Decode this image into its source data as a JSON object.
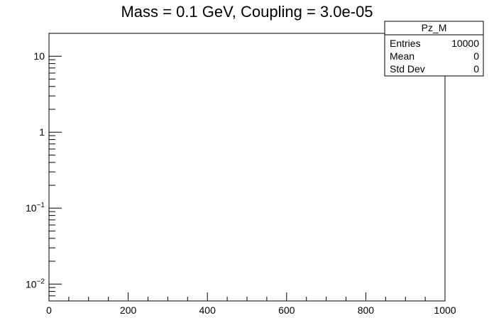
{
  "chart_data": {
    "type": "histogram",
    "title": "Mass = 0.1 GeV, Coupling = 3.0e-05",
    "xlabel": "",
    "ylabel": "",
    "xlim": [
      0,
      1000
    ],
    "ylim": [
      0.006,
      20
    ],
    "y_scale": "log",
    "grid": false,
    "x_ticks": [
      {
        "value": 0,
        "label": "0"
      },
      {
        "value": 200,
        "label": "200"
      },
      {
        "value": 400,
        "label": "400"
      },
      {
        "value": 600,
        "label": "600"
      },
      {
        "value": 800,
        "label": "800"
      },
      {
        "value": 1000,
        "label": "1000"
      }
    ],
    "y_ticks": [
      {
        "value": 0.01,
        "base": "10",
        "exp": "−2"
      },
      {
        "value": 0.1,
        "base": "10",
        "exp": "−1"
      },
      {
        "value": 1,
        "base": "1",
        "exp": ""
      },
      {
        "value": 10,
        "base": "10",
        "exp": ""
      }
    ],
    "values": [],
    "stats_box": {
      "placement": "top-right",
      "name": "Pz_M",
      "rows": [
        {
          "label": "Entries",
          "value": "10000"
        },
        {
          "label": "Mean",
          "value": "0"
        },
        {
          "label": "Std Dev",
          "value": "0"
        }
      ]
    }
  }
}
